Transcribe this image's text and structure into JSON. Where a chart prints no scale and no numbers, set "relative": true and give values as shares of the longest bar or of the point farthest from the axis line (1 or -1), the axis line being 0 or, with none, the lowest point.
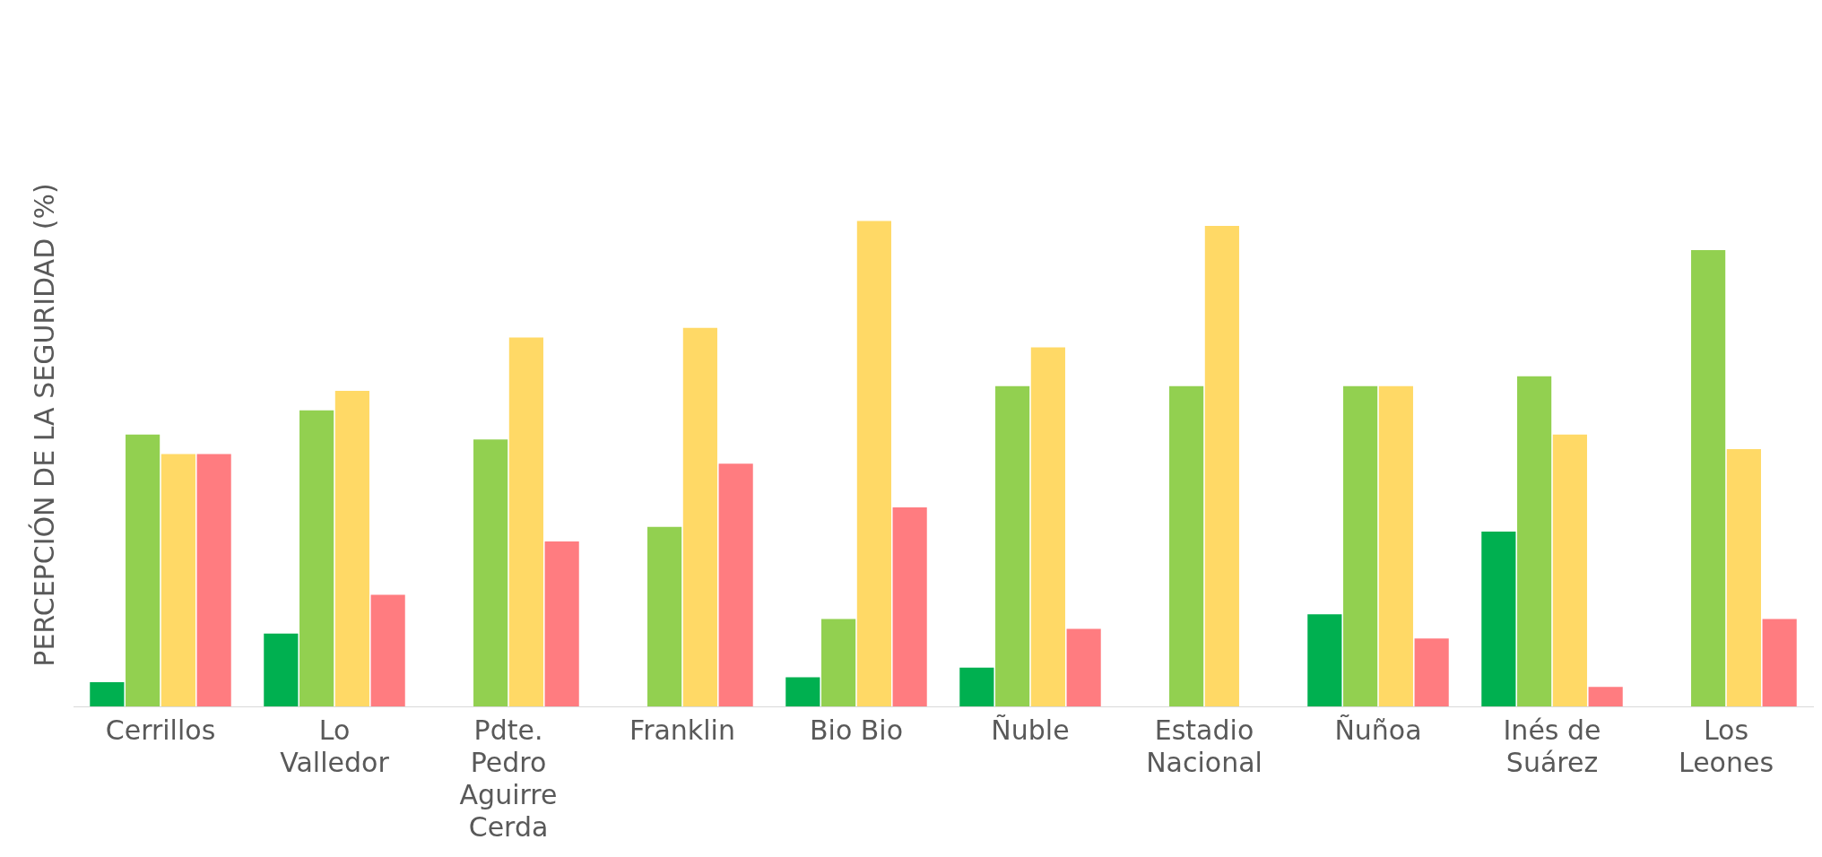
{
  "chart_data": {
    "type": "bar",
    "ylabel": "PERCEPCIÓN DE LA SEGURIDAD (%)",
    "relative": true,
    "legend": false,
    "categories": [
      "Cerrillos",
      "Lo Valledor",
      "Pdte. Pedro Aguirre Cerda",
      "Franklin",
      "Bio Bio",
      "Ñuble",
      "Estadio Nacional",
      "Ñuñoa",
      "Inés de Suárez",
      "Los Leones"
    ],
    "series": [
      {
        "color": "#00b050",
        "values": [
          0.05,
          0.15,
          0,
          0,
          0.06,
          0.08,
          0,
          0.19,
          0.36,
          0
        ]
      },
      {
        "color": "#92d050",
        "values": [
          0.56,
          0.61,
          0.55,
          0.37,
          0.18,
          0.66,
          0.66,
          0.66,
          0.68,
          0.94
        ]
      },
      {
        "color": "#ffd966",
        "values": [
          0.52,
          0.65,
          0.76,
          0.78,
          1,
          0.74,
          0.99,
          0.66,
          0.56,
          0.53
        ]
      },
      {
        "color": "#ff7c80",
        "values": [
          0.52,
          0.23,
          0.34,
          0.5,
          0.41,
          0.16,
          0,
          0.14,
          0.04,
          0.18
        ]
      }
    ]
  }
}
